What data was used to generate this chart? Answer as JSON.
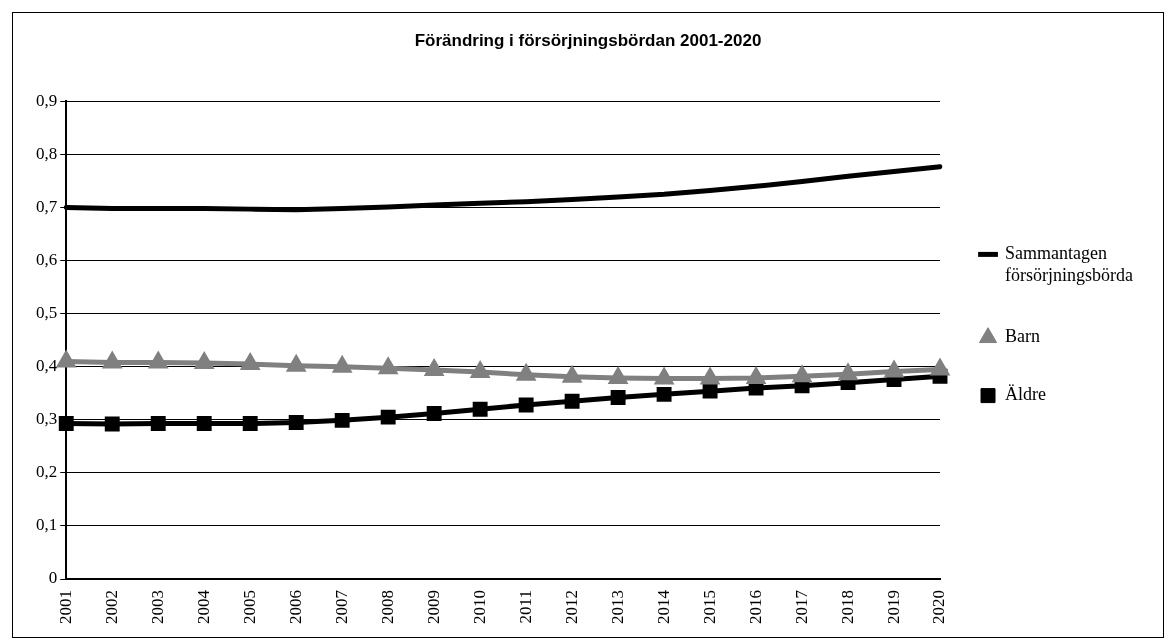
{
  "chart_data": {
    "type": "line",
    "title": "Förändring i försörjningsbördan 2001-2020",
    "categories": [
      "2001",
      "2002",
      "2003",
      "2004",
      "2005",
      "2006",
      "2007",
      "2008",
      "2009",
      "2010",
      "2011",
      "2012",
      "2013",
      "2014",
      "2015",
      "2016",
      "2017",
      "2018",
      "2019",
      "2020"
    ],
    "series": [
      {
        "name": "Sammantagen försörjningsbörda",
        "color": "#000000",
        "marker": "none",
        "values": [
          0.7,
          0.698,
          0.698,
          0.698,
          0.697,
          0.696,
          0.698,
          0.701,
          0.705,
          0.708,
          0.711,
          0.715,
          0.72,
          0.725,
          0.732,
          0.74,
          0.749,
          0.759,
          0.768,
          0.777
        ]
      },
      {
        "name": "Barn",
        "color": "#808080",
        "marker": "triangle",
        "values": [
          0.41,
          0.408,
          0.408,
          0.407,
          0.405,
          0.402,
          0.4,
          0.397,
          0.394,
          0.39,
          0.385,
          0.381,
          0.379,
          0.378,
          0.378,
          0.379,
          0.382,
          0.386,
          0.391,
          0.395
        ]
      },
      {
        "name": "Äldre",
        "color": "#000000",
        "marker": "square",
        "values": [
          0.293,
          0.292,
          0.293,
          0.293,
          0.293,
          0.295,
          0.299,
          0.305,
          0.312,
          0.32,
          0.328,
          0.335,
          0.342,
          0.348,
          0.354,
          0.36,
          0.364,
          0.37,
          0.376,
          0.382
        ]
      }
    ],
    "ylim": [
      0,
      0.9
    ],
    "yticks": [
      {
        "value": 0,
        "label": "0"
      },
      {
        "value": 0.1,
        "label": "0,1"
      },
      {
        "value": 0.2,
        "label": "0,2"
      },
      {
        "value": 0.3,
        "label": "0,3"
      },
      {
        "value": 0.4,
        "label": "0,4"
      },
      {
        "value": 0.5,
        "label": "0,5"
      },
      {
        "value": 0.6,
        "label": "0,6"
      },
      {
        "value": 0.7,
        "label": "0,7"
      },
      {
        "value": 0.8,
        "label": "0,8"
      },
      {
        "value": 0.9,
        "label": "0,9"
      }
    ],
    "grid": "y",
    "legend": "right",
    "line_style": "solid"
  }
}
